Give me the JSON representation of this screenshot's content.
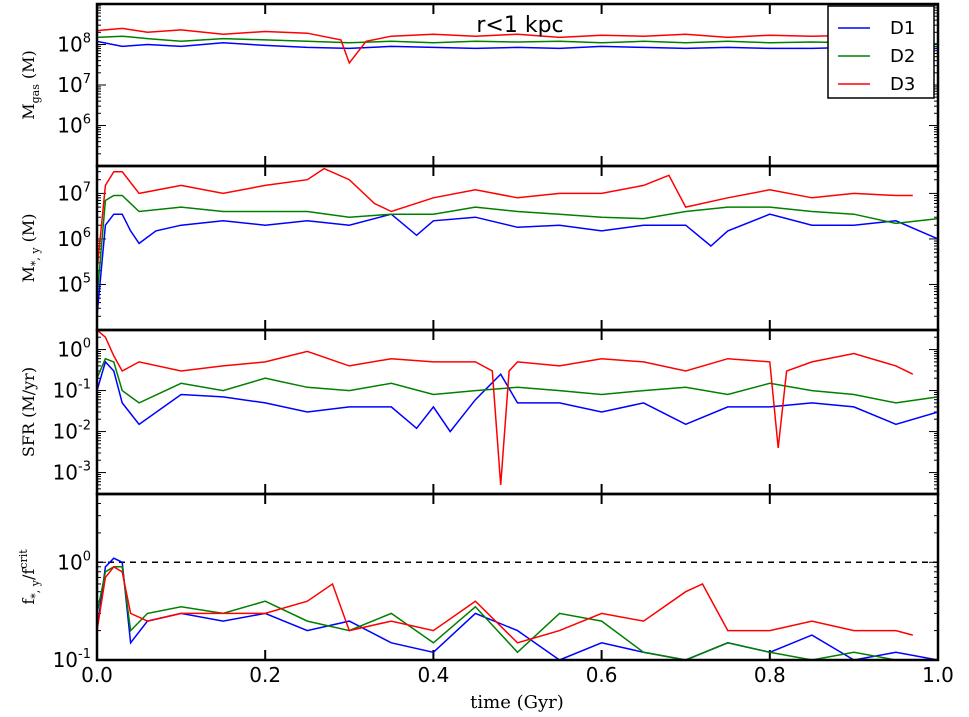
{
  "chart_data": {
    "type": "line",
    "xlabel": "time (Gyr)",
    "xlim": [
      0.0,
      1.0
    ],
    "xticks": [
      "0.0",
      "0.2",
      "0.4",
      "0.6",
      "0.8",
      "1.0"
    ],
    "annotation": "r<1 kpc",
    "legend": {
      "placement": "top-right",
      "entries": [
        {
          "name": "D1",
          "color": "#0000ff"
        },
        {
          "name": "D2",
          "color": "#008000"
        },
        {
          "name": "D3",
          "color": "#ff0000"
        }
      ]
    },
    "panels": [
      {
        "id": "mgas",
        "ylabel_main": "M",
        "ylabel_sub": "gas",
        "ylabel_unit": " (M",
        "ylabel_close": ")",
        "ylog": true,
        "ylim": [
          100000.0,
          1000000000.0
        ],
        "yticks": [
          {
            "base": "10",
            "exp": "6",
            "value": 1000000
          },
          {
            "base": "10",
            "exp": "7",
            "value": 10000000
          },
          {
            "base": "10",
            "exp": "8",
            "value": 100000000
          }
        ],
        "series": [
          {
            "name": "D1",
            "x": [
              0,
              0.03,
              0.06,
              0.1,
              0.15,
              0.2,
              0.25,
              0.3,
              0.35,
              0.4,
              0.45,
              0.5,
              0.55,
              0.6,
              0.65,
              0.7,
              0.75,
              0.8,
              0.85,
              0.9,
              0.95,
              1.0
            ],
            "y": [
              120000000.0,
              90000000.0,
              100000000.0,
              90000000.0,
              110000000.0,
              95000000.0,
              85000000.0,
              80000000.0,
              90000000.0,
              85000000.0,
              80000000.0,
              85000000.0,
              80000000.0,
              90000000.0,
              85000000.0,
              80000000.0,
              85000000.0,
              80000000.0,
              80000000.0,
              85000000.0,
              75000000.0,
              80000000.0
            ]
          },
          {
            "name": "D2",
            "x": [
              0,
              0.03,
              0.06,
              0.1,
              0.15,
              0.2,
              0.25,
              0.3,
              0.35,
              0.4,
              0.45,
              0.5,
              0.55,
              0.6,
              0.65,
              0.7,
              0.75,
              0.8,
              0.85,
              0.9,
              0.95,
              1.0
            ],
            "y": [
              150000000.0,
              160000000.0,
              140000000.0,
              120000000.0,
              140000000.0,
              130000000.0,
              120000000.0,
              110000000.0,
              120000000.0,
              110000000.0,
              120000000.0,
              115000000.0,
              120000000.0,
              110000000.0,
              120000000.0,
              110000000.0,
              120000000.0,
              110000000.0,
              115000000.0,
              110000000.0,
              100000000.0,
              105000000.0
            ]
          },
          {
            "name": "D3",
            "x": [
              0,
              0.03,
              0.06,
              0.1,
              0.15,
              0.2,
              0.25,
              0.29,
              0.3,
              0.32,
              0.35,
              0.4,
              0.45,
              0.5,
              0.55,
              0.6,
              0.65,
              0.7,
              0.75,
              0.8,
              0.85,
              0.9,
              0.95,
              0.97
            ],
            "y": [
              220000000.0,
              250000000.0,
              200000000.0,
              230000000.0,
              180000000.0,
              210000000.0,
              190000000.0,
              130000000.0,
              35000000.0,
              120000000.0,
              160000000.0,
              180000000.0,
              160000000.0,
              180000000.0,
              150000000.0,
              170000000.0,
              160000000.0,
              180000000.0,
              150000000.0,
              170000000.0,
              160000000.0,
              170000000.0,
              160000000.0,
              150000000.0
            ]
          }
        ]
      },
      {
        "id": "mstar",
        "ylabel_main": "M",
        "ylabel_sub": "*, y",
        "ylabel_unit": " (M",
        "ylabel_close": ")",
        "ylog": true,
        "ylim": [
          10000.0,
          40000000.0
        ],
        "yticks": [
          {
            "base": "10",
            "exp": "5",
            "value": 100000
          },
          {
            "base": "10",
            "exp": "6",
            "value": 1000000
          },
          {
            "base": "10",
            "exp": "7",
            "value": 10000000
          }
        ],
        "series": [
          {
            "name": "D1",
            "x": [
              0,
              0.01,
              0.02,
              0.03,
              0.04,
              0.05,
              0.07,
              0.1,
              0.15,
              0.2,
              0.25,
              0.3,
              0.35,
              0.38,
              0.4,
              0.45,
              0.5,
              0.55,
              0.6,
              0.65,
              0.7,
              0.73,
              0.75,
              0.8,
              0.85,
              0.9,
              0.95,
              1.0
            ],
            "y": [
              20000.0,
              2000000.0,
              3500000.0,
              3500000.0,
              1500000.0,
              800000.0,
              1500000.0,
              2000000.0,
              2500000.0,
              2000000.0,
              2500000.0,
              2000000.0,
              3500000.0,
              1200000.0,
              2500000.0,
              3000000.0,
              1800000.0,
              2000000.0,
              1500000.0,
              2000000.0,
              2000000.0,
              700000.0,
              1500000.0,
              3500000.0,
              2000000.0,
              2000000.0,
              2500000.0,
              1000000.0
            ]
          },
          {
            "name": "D2",
            "x": [
              0,
              0.01,
              0.02,
              0.03,
              0.05,
              0.1,
              0.15,
              0.2,
              0.25,
              0.3,
              0.35,
              0.4,
              0.45,
              0.5,
              0.55,
              0.6,
              0.65,
              0.7,
              0.75,
              0.8,
              0.85,
              0.9,
              0.95,
              1.0
            ],
            "y": [
              50000.0,
              7000000.0,
              9000000.0,
              9000000.0,
              4000000.0,
              5000000.0,
              4000000.0,
              4000000.0,
              4000000.0,
              3000000.0,
              3500000.0,
              3500000.0,
              5000000.0,
              4000000.0,
              3500000.0,
              3000000.0,
              2800000.0,
              4000000.0,
              5000000.0,
              5000000.0,
              4000000.0,
              3500000.0,
              2200000.0,
              2800000.0
            ]
          },
          {
            "name": "D3",
            "x": [
              0,
              0.01,
              0.02,
              0.03,
              0.05,
              0.1,
              0.15,
              0.2,
              0.25,
              0.27,
              0.3,
              0.33,
              0.35,
              0.4,
              0.45,
              0.5,
              0.55,
              0.6,
              0.65,
              0.68,
              0.7,
              0.75,
              0.8,
              0.85,
              0.9,
              0.95,
              0.97
            ],
            "y": [
              200000.0,
              15000000.0,
              30000000.0,
              30000000.0,
              10000000.0,
              15000000.0,
              10000000.0,
              15000000.0,
              20000000.0,
              35000000.0,
              20000000.0,
              6000000.0,
              4000000.0,
              8000000.0,
              12000000.0,
              8000000.0,
              10000000.0,
              10000000.0,
              15000000.0,
              25000000.0,
              5000000.0,
              8000000.0,
              12000000.0,
              8000000.0,
              10000000.0,
              9000000.0,
              9000000.0
            ]
          }
        ]
      },
      {
        "id": "sfr",
        "ylabel_main": "SFR (M",
        "ylabel_sub": "",
        "ylabel_unit": "/yr)",
        "ylabel_close": "",
        "ylog": true,
        "ylim": [
          0.0003,
          3.0
        ],
        "yticks": [
          {
            "base": "10",
            "exp": "-3",
            "value": 0.001
          },
          {
            "base": "10",
            "exp": "-2",
            "value": 0.01
          },
          {
            "base": "10",
            "exp": "-1",
            "value": 0.1
          },
          {
            "base": "10",
            "exp": "0",
            "value": 1
          }
        ],
        "series": [
          {
            "name": "D1",
            "x": [
              0,
              0.01,
              0.02,
              0.03,
              0.05,
              0.1,
              0.15,
              0.2,
              0.25,
              0.3,
              0.35,
              0.38,
              0.4,
              0.42,
              0.45,
              0.48,
              0.5,
              0.55,
              0.6,
              0.65,
              0.7,
              0.75,
              0.8,
              0.85,
              0.9,
              0.95,
              1.0
            ],
            "y": [
              0.1,
              0.5,
              0.3,
              0.05,
              0.015,
              0.08,
              0.07,
              0.05,
              0.03,
              0.04,
              0.04,
              0.012,
              0.04,
              0.01,
              0.06,
              0.25,
              0.05,
              0.05,
              0.03,
              0.05,
              0.015,
              0.04,
              0.04,
              0.05,
              0.04,
              0.015,
              0.03
            ]
          },
          {
            "name": "D2",
            "x": [
              0,
              0.01,
              0.02,
              0.03,
              0.05,
              0.1,
              0.15,
              0.2,
              0.25,
              0.3,
              0.35,
              0.4,
              0.45,
              0.5,
              0.55,
              0.6,
              0.65,
              0.7,
              0.75,
              0.8,
              0.85,
              0.9,
              0.95,
              1.0
            ],
            "y": [
              0.2,
              0.6,
              0.5,
              0.1,
              0.05,
              0.15,
              0.1,
              0.2,
              0.12,
              0.1,
              0.15,
              0.08,
              0.1,
              0.12,
              0.1,
              0.08,
              0.1,
              0.12,
              0.08,
              0.15,
              0.1,
              0.08,
              0.05,
              0.07
            ]
          },
          {
            "name": "D3",
            "x": [
              0,
              0.01,
              0.02,
              0.03,
              0.05,
              0.1,
              0.15,
              0.2,
              0.25,
              0.3,
              0.35,
              0.4,
              0.45,
              0.47,
              0.48,
              0.49,
              0.5,
              0.55,
              0.6,
              0.65,
              0.7,
              0.75,
              0.8,
              0.81,
              0.82,
              0.85,
              0.9,
              0.95,
              0.97
            ],
            "y": [
              3,
              2,
              0.7,
              0.3,
              0.5,
              0.3,
              0.4,
              0.5,
              0.9,
              0.4,
              0.6,
              0.5,
              0.5,
              0.3,
              0.0005,
              0.3,
              0.5,
              0.4,
              0.6,
              0.5,
              0.3,
              0.6,
              0.5,
              0.004,
              0.3,
              0.5,
              0.8,
              0.4,
              0.25
            ]
          }
        ]
      },
      {
        "id": "fratio",
        "ylabel_main": "f",
        "ylabel_sub": "*, y",
        "ylabel_unit": "/f",
        "ylabel_close": "crit",
        "ylog": true,
        "ylim": [
          0.1,
          5.0
        ],
        "yticks": [
          {
            "base": "10",
            "exp": "-1",
            "value": 0.1
          },
          {
            "base": "10",
            "exp": "0",
            "value": 1
          }
        ],
        "reference_line": 1.0,
        "series": [
          {
            "name": "D1",
            "x": [
              0,
              0.01,
              0.02,
              0.03,
              0.04,
              0.06,
              0.1,
              0.15,
              0.2,
              0.25,
              0.3,
              0.35,
              0.4,
              0.45,
              0.5,
              0.55,
              0.6,
              0.65,
              0.7,
              0.75,
              0.8,
              0.85,
              0.9,
              0.95,
              1.0
            ],
            "y": [
              0.2,
              0.9,
              1.1,
              1.0,
              0.15,
              0.25,
              0.3,
              0.25,
              0.3,
              0.2,
              0.25,
              0.15,
              0.12,
              0.3,
              0.2,
              0.1,
              0.15,
              0.12,
              0.1,
              0.15,
              0.12,
              0.18,
              0.1,
              0.12,
              0.1
            ]
          },
          {
            "name": "D2",
            "x": [
              0,
              0.01,
              0.02,
              0.03,
              0.04,
              0.06,
              0.1,
              0.15,
              0.2,
              0.25,
              0.3,
              0.35,
              0.4,
              0.45,
              0.5,
              0.55,
              0.6,
              0.65,
              0.7,
              0.75,
              0.8,
              0.85,
              0.9,
              0.95,
              1.0
            ],
            "y": [
              0.3,
              0.8,
              0.9,
              0.9,
              0.2,
              0.3,
              0.35,
              0.3,
              0.4,
              0.25,
              0.2,
              0.3,
              0.15,
              0.35,
              0.12,
              0.3,
              0.25,
              0.12,
              0.1,
              0.15,
              0.12,
              0.1,
              0.12,
              0.1,
              0.1
            ]
          },
          {
            "name": "D3",
            "x": [
              0,
              0.01,
              0.02,
              0.03,
              0.04,
              0.06,
              0.1,
              0.15,
              0.2,
              0.25,
              0.28,
              0.3,
              0.35,
              0.4,
              0.45,
              0.5,
              0.55,
              0.6,
              0.65,
              0.7,
              0.72,
              0.75,
              0.8,
              0.85,
              0.9,
              0.95,
              0.97
            ],
            "y": [
              0.2,
              0.7,
              0.9,
              0.8,
              0.3,
              0.25,
              0.3,
              0.3,
              0.3,
              0.4,
              0.6,
              0.2,
              0.25,
              0.2,
              0.4,
              0.15,
              0.2,
              0.3,
              0.25,
              0.5,
              0.6,
              0.2,
              0.2,
              0.25,
              0.2,
              0.2,
              0.18
            ]
          }
        ]
      }
    ]
  }
}
